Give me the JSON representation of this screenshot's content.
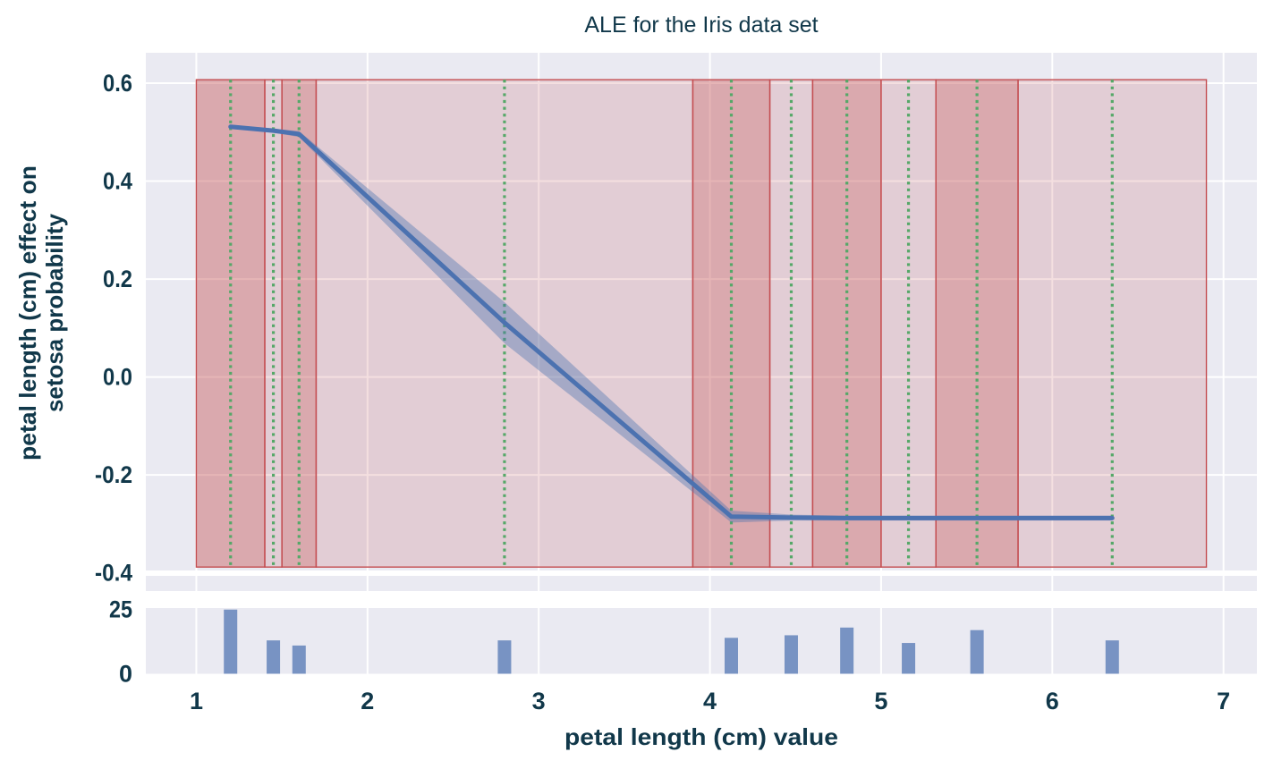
{
  "colors": {
    "background": "#ffffff",
    "axes_background": "#eaeaf2",
    "grid": "#ffffff",
    "text": "#11384a",
    "ale_line": "#4c72b0",
    "ci_fill": "rgba(76,114,176,0.40)",
    "band_edge": "#c44e52",
    "band_light": "rgba(196,78,82,0.18)",
    "band_dark": "rgba(196,78,82,0.42)",
    "quantile_midline": "#55a868",
    "hist_bar": "rgba(76,114,176,0.72)"
  },
  "chart_data": {
    "type": "line",
    "title": "ALE for the Iris data set",
    "xlabel": "petal length (cm) value",
    "ylabel_lines": [
      "petal length (cm) effect on",
      "setosa probability"
    ],
    "grid": true,
    "legend": false,
    "xlim": [
      0.705,
      7.195
    ],
    "ylim": [
      -0.395,
      0.662
    ],
    "x_ticks": [
      {
        "value": 1,
        "label": "1"
      },
      {
        "value": 2,
        "label": "2"
      },
      {
        "value": 3,
        "label": "3"
      },
      {
        "value": 4,
        "label": "4"
      },
      {
        "value": 5,
        "label": "5"
      },
      {
        "value": 6,
        "label": "6"
      },
      {
        "value": 7,
        "label": "7"
      }
    ],
    "y_ticks": [
      {
        "value": 0.6,
        "label": "0.6"
      },
      {
        "value": 0.4,
        "label": "0.4"
      },
      {
        "value": 0.2,
        "label": "0.2"
      },
      {
        "value": 0.0,
        "label": "0.0"
      },
      {
        "value": -0.2,
        "label": "-0.2"
      },
      {
        "value": -0.4,
        "label": "-0.4"
      }
    ],
    "quantile_bin_edges": [
      1.0,
      1.4,
      1.5,
      1.7,
      3.9,
      4.35,
      4.6,
      5.0,
      5.32,
      5.8,
      6.9
    ],
    "quantile_bin_centers": [
      1.2,
      1.45,
      1.6,
      2.8,
      4.125,
      4.475,
      4.8,
      5.16,
      5.56,
      6.35
    ],
    "band_y_range": [
      -0.388,
      0.607
    ],
    "ale_series": {
      "x": [
        1.2,
        1.45,
        1.6,
        2.8,
        4.125,
        4.475,
        4.8,
        5.16,
        5.56,
        6.35
      ],
      "y": [
        0.511,
        0.503,
        0.496,
        0.111,
        -0.285,
        -0.287,
        -0.288,
        -0.288,
        -0.288,
        -0.288
      ],
      "ci": [
        0.004,
        0.004,
        0.006,
        0.042,
        0.012,
        0.006,
        0.005,
        0.005,
        0.005,
        0.005
      ]
    },
    "histogram": {
      "type": "bar",
      "ylim": [
        0,
        25.6
      ],
      "y_ticks": [
        {
          "value": 25,
          "label": "25"
        },
        {
          "value": 0,
          "label": "0"
        }
      ],
      "centers": [
        1.2,
        1.45,
        1.6,
        2.8,
        4.125,
        4.475,
        4.8,
        5.16,
        5.56,
        6.35
      ],
      "counts": [
        25,
        13,
        11,
        13,
        14,
        15,
        18,
        12,
        17,
        13
      ]
    }
  }
}
